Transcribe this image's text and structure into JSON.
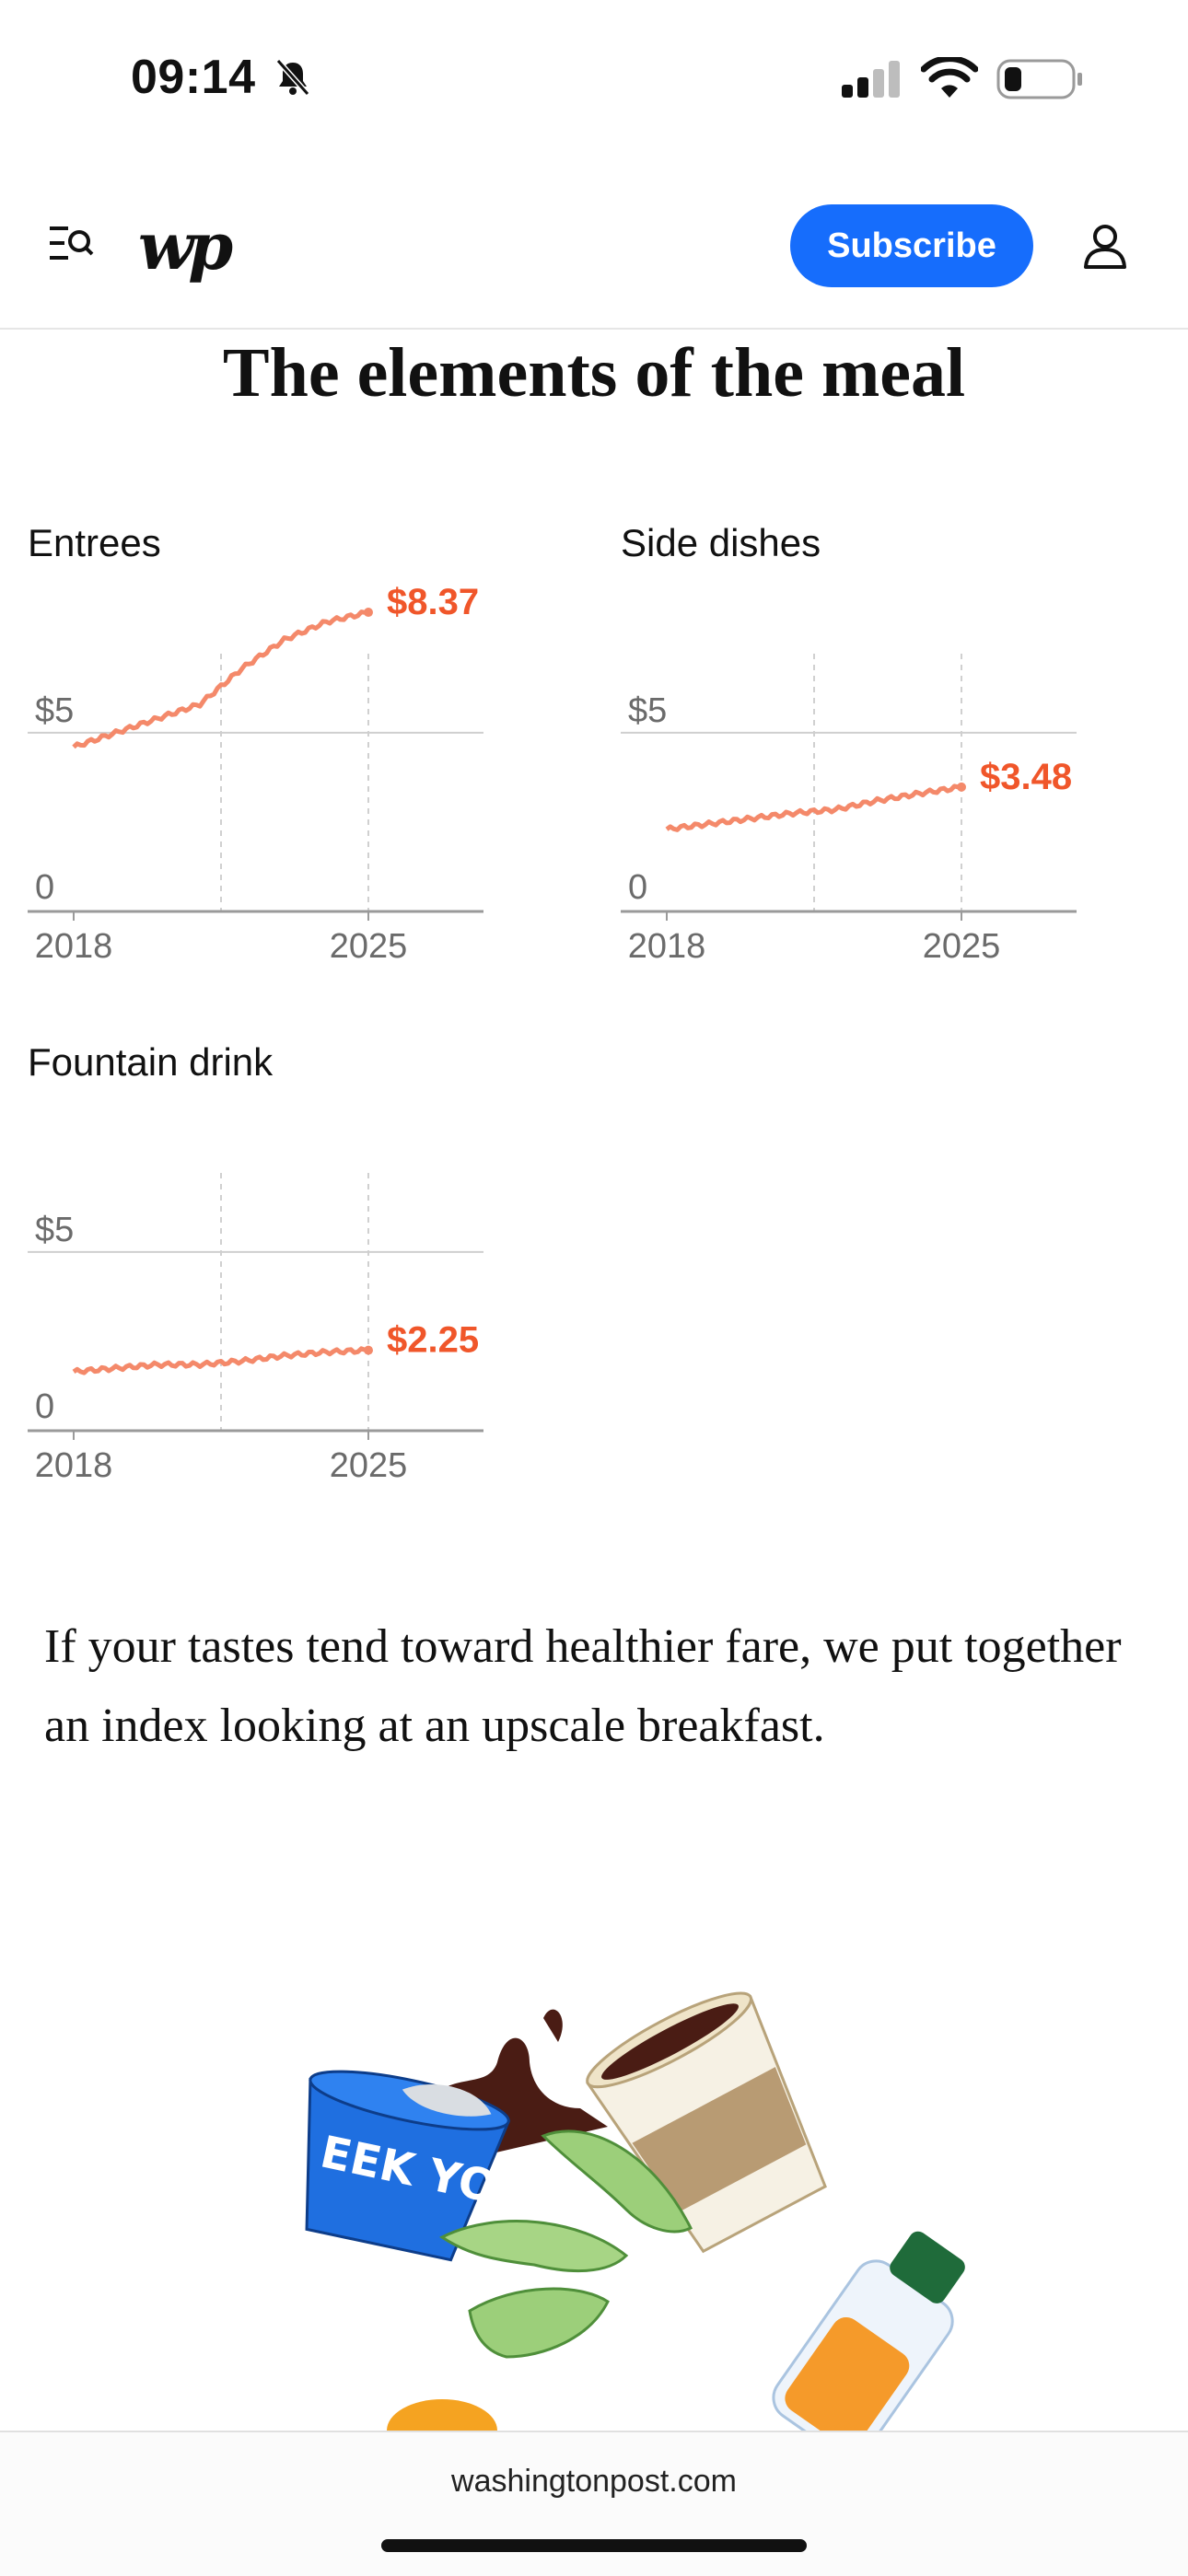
{
  "status_bar": {
    "time": "09:14"
  },
  "header": {
    "subscribe_label": "Subscribe",
    "logo_text": "wp"
  },
  "headline": "The elements of the meal",
  "charts": [
    {
      "title": "Entrees",
      "y_label": "$5",
      "zero_label": "0",
      "x_start": "2018",
      "x_end": "2025",
      "value_label": "$8.37"
    },
    {
      "title": "Side dishes",
      "y_label": "$5",
      "zero_label": "0",
      "x_start": "2018",
      "x_end": "2025",
      "value_label": "$3.48"
    },
    {
      "title": "Fountain drink",
      "y_label": "$5",
      "zero_label": "0",
      "x_start": "2018",
      "x_end": "2025",
      "value_label": "$2.25"
    }
  ],
  "chart_data": [
    {
      "type": "line",
      "title": "Entrees",
      "x": [
        2018,
        2019,
        2020,
        2021,
        2022,
        2023,
        2024,
        2025
      ],
      "values": [
        4.6,
        5.0,
        5.4,
        5.8,
        6.8,
        7.6,
        8.1,
        8.37
      ],
      "ylim": [
        0,
        8.5
      ],
      "yticks": [
        0,
        5
      ],
      "xticks": [
        2018,
        2025
      ],
      "grid": true
    },
    {
      "type": "line",
      "title": "Side dishes",
      "x": [
        2018,
        2019,
        2020,
        2021,
        2022,
        2023,
        2024,
        2025
      ],
      "values": [
        2.3,
        2.45,
        2.6,
        2.75,
        2.85,
        3.1,
        3.3,
        3.48
      ],
      "ylim": [
        0,
        8.5
      ],
      "yticks": [
        0,
        5
      ],
      "xticks": [
        2018,
        2025
      ],
      "grid": true
    },
    {
      "type": "line",
      "title": "Fountain drink",
      "x": [
        2018,
        2019,
        2020,
        2021,
        2022,
        2023,
        2024,
        2025
      ],
      "values": [
        1.65,
        1.75,
        1.85,
        1.85,
        1.95,
        2.1,
        2.2,
        2.25
      ],
      "ylim": [
        0,
        8.5
      ],
      "yticks": [
        0,
        5
      ],
      "xticks": [
        2018,
        2025
      ],
      "grid": true
    }
  ],
  "paragraph": "If your tastes tend toward healthier fare, we put together an index looking at an upscale breakfast.",
  "illustration": {
    "yogurt_text": "EEK YOG"
  },
  "browser": {
    "url": "washingtonpost.com"
  },
  "colors": {
    "accent_line": "#f4896a",
    "accent_value": "#f0562a",
    "subscribe": "#166dfc"
  }
}
